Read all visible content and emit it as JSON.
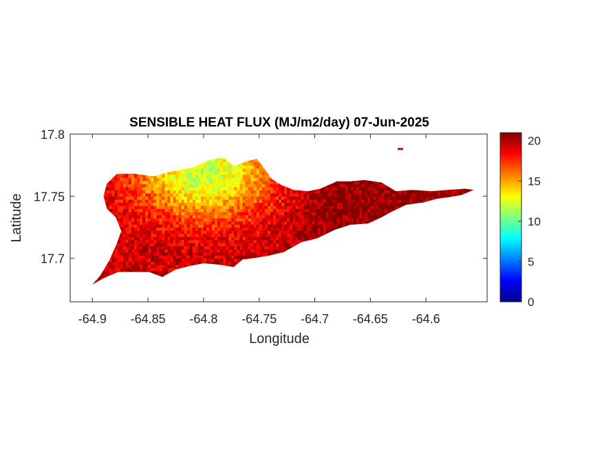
{
  "chart_data": {
    "type": "heatmap",
    "title": "SENSIBLE HEAT FLUX (MJ/m2/day) 07-Jun-2025",
    "xlabel": "Longitude",
    "ylabel": "Latitude",
    "xlim": [
      -64.92,
      -64.545
    ],
    "ylim": [
      17.665,
      17.8
    ],
    "x_ticks": [
      -64.9,
      -64.85,
      -64.8,
      -64.75,
      -64.7,
      -64.65,
      -64.6
    ],
    "x_tick_labels": [
      "-64.9",
      "-64.85",
      "-64.8",
      "-64.75",
      "-64.7",
      "-64.65",
      "-64.6"
    ],
    "y_ticks": [
      17.7,
      17.75,
      17.8
    ],
    "y_tick_labels": [
      "17.7",
      "17.75",
      "17.8"
    ],
    "colorbar": {
      "colormap": "jet",
      "range": [
        0,
        21
      ],
      "ticks": [
        0,
        5,
        10,
        15,
        20
      ],
      "tick_labels": [
        "0",
        "5",
        "10",
        "15",
        "20"
      ]
    },
    "island_outline": [
      [
        -64.9,
        17.679
      ],
      [
        -64.893,
        17.686
      ],
      [
        -64.885,
        17.698
      ],
      [
        -64.878,
        17.712
      ],
      [
        -64.874,
        17.722
      ],
      [
        -64.879,
        17.733
      ],
      [
        -64.887,
        17.74
      ],
      [
        -64.89,
        17.75
      ],
      [
        -64.887,
        17.76
      ],
      [
        -64.878,
        17.768
      ],
      [
        -64.862,
        17.768
      ],
      [
        -64.845,
        17.766
      ],
      [
        -64.829,
        17.77
      ],
      [
        -64.81,
        17.773
      ],
      [
        -64.795,
        17.779
      ],
      [
        -64.782,
        17.781
      ],
      [
        -64.772,
        17.774
      ],
      [
        -64.762,
        17.778
      ],
      [
        -64.752,
        17.78
      ],
      [
        -64.745,
        17.772
      ],
      [
        -64.739,
        17.764
      ],
      [
        -64.73,
        17.759
      ],
      [
        -64.719,
        17.755
      ],
      [
        -64.706,
        17.754
      ],
      [
        -64.695,
        17.756
      ],
      [
        -64.68,
        17.762
      ],
      [
        -64.668,
        17.762
      ],
      [
        -64.655,
        17.763
      ],
      [
        -64.64,
        17.761
      ],
      [
        -64.627,
        17.754
      ],
      [
        -64.612,
        17.755
      ],
      [
        -64.595,
        17.754
      ],
      [
        -64.58,
        17.755
      ],
      [
        -64.565,
        17.756
      ],
      [
        -64.557,
        17.755
      ],
      [
        -64.568,
        17.751
      ],
      [
        -64.581,
        17.749
      ],
      [
        -64.59,
        17.748
      ],
      [
        -64.602,
        17.745
      ],
      [
        -64.618,
        17.743
      ],
      [
        -64.632,
        17.737
      ],
      [
        -64.64,
        17.733
      ],
      [
        -64.652,
        17.728
      ],
      [
        -64.668,
        17.727
      ],
      [
        -64.682,
        17.723
      ],
      [
        -64.698,
        17.716
      ],
      [
        -64.712,
        17.713
      ],
      [
        -64.728,
        17.705
      ],
      [
        -64.742,
        17.702
      ],
      [
        -64.756,
        17.7
      ],
      [
        -64.765,
        17.699
      ],
      [
        -64.773,
        17.693
      ],
      [
        -64.787,
        17.695
      ],
      [
        -64.8,
        17.696
      ],
      [
        -64.812,
        17.694
      ],
      [
        -64.825,
        17.691
      ],
      [
        -64.837,
        17.685
      ],
      [
        -64.849,
        17.689
      ],
      [
        -64.862,
        17.689
      ],
      [
        -64.877,
        17.689
      ],
      [
        -64.89,
        17.684
      ],
      [
        -64.9,
        17.679
      ]
    ],
    "islet": {
      "lon": -64.623,
      "lat": 17.788,
      "value": 19
    },
    "field_trend": "values near 11-14 (yellow-green) over the central northern area around -64.80, 17.765, rising to about 19-21 (red) along the south coast and the eastern end"
  }
}
